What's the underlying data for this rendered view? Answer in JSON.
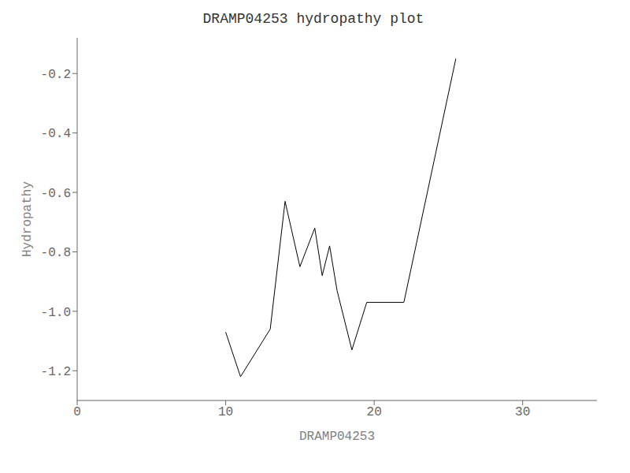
{
  "chart_data": {
    "type": "line",
    "title": "DRAMP04253 hydropathy plot",
    "x_label": "DRAMP04253",
    "y_label": "Hydropathy",
    "x": [
      10.0,
      11.0,
      13.0,
      14.0,
      15.0,
      16.0,
      16.5,
      17.0,
      17.5,
      18.5,
      19.5,
      21.0,
      22.0,
      25.5
    ],
    "series": [
      {
        "name": "Hydropathy",
        "color": "black",
        "values": [
          -1.07,
          -1.22,
          -1.06,
          -0.63,
          -0.85,
          -0.72,
          -0.88,
          -0.78,
          -0.93,
          -1.13,
          -0.97,
          -0.97,
          -0.97,
          -0.15
        ]
      }
    ],
    "xlim": [
      0,
      35
    ],
    "ylim": [
      -1.3,
      -0.08
    ],
    "xticks": [
      0,
      10,
      20,
      30
    ],
    "yticks": [
      -1.2,
      {
        "value": -1.0,
        "label": "-1.0"
      },
      -0.8,
      -0.6,
      -0.4,
      -0.2
    ],
    "grid": false
  }
}
